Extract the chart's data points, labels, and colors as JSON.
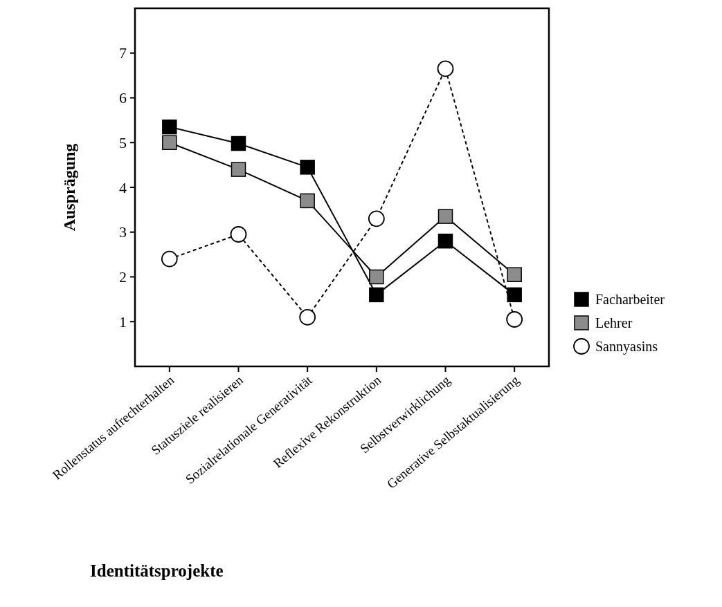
{
  "chart_data": {
    "type": "line",
    "xlabel": "Identitätsprojekte",
    "ylabel": "Ausprägung",
    "categories": [
      "Rollenstatus aufrechterhalten",
      "Statusziele realisieren",
      "Sozialrelationale Generativität",
      "Reflexive Rekonstruktion",
      "Selbstverwirklichung",
      "Generative Selbstaktualisierung"
    ],
    "series": [
      {
        "name": "Facharbeiter",
        "color": "#000000",
        "marker": "square",
        "line_style": "solid",
        "values": [
          5.35,
          4.98,
          4.45,
          1.6,
          2.8,
          1.6
        ]
      },
      {
        "name": "Lehrer",
        "color": "#8c8c8c",
        "marker": "square",
        "line_style": "solid",
        "values": [
          5.0,
          4.4,
          3.7,
          2.0,
          3.35,
          2.05
        ]
      },
      {
        "name": "Sannyasins",
        "color": "#ffffff",
        "marker": "circle",
        "line_style": "dashed",
        "values": [
          2.4,
          2.95,
          1.1,
          3.3,
          6.65,
          1.05
        ]
      }
    ],
    "ylim": [
      0,
      8
    ],
    "yticks": [
      1,
      2,
      3,
      4,
      5,
      6,
      7
    ],
    "grid": false,
    "legend": "right"
  }
}
